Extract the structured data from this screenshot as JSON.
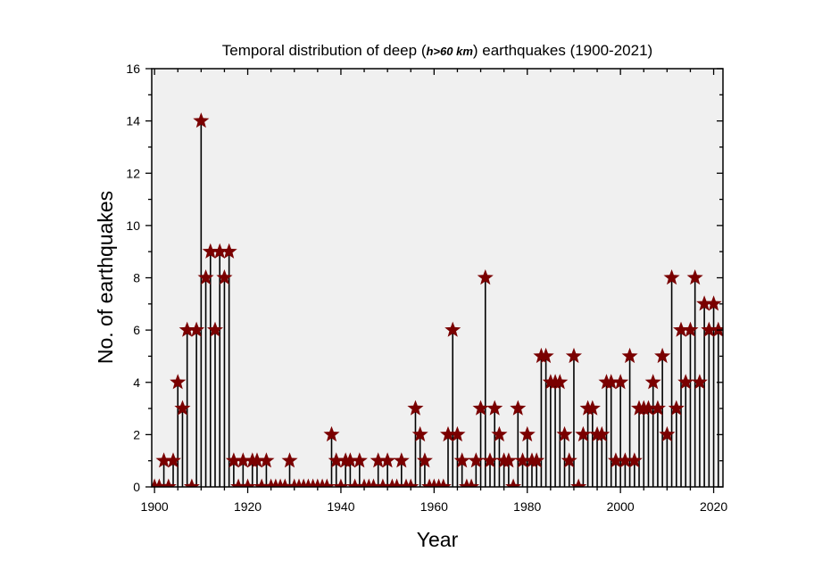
{
  "chart_data": {
    "type": "stem",
    "title_parts": [
      "Temporal distribution of deep (",
      "h>60 km",
      ") earthquakes (1900-2021)"
    ],
    "xlabel": "Year",
    "ylabel": "No. of earthquakes",
    "xlim": [
      1899.4,
      2022
    ],
    "ylim": [
      0,
      16
    ],
    "xticks": [
      1900,
      1920,
      1940,
      1960,
      1980,
      2000,
      2020
    ],
    "yticks": [
      0,
      2,
      4,
      6,
      8,
      10,
      12,
      14,
      16
    ],
    "grid": false,
    "marker": "star",
    "colors": {
      "marker": "#7a0000",
      "stem": "#000000",
      "plot_background": "#f0f0f0"
    },
    "x": [
      1900,
      1901,
      1902,
      1903,
      1904,
      1905,
      1906,
      1907,
      1908,
      1909,
      1910,
      1911,
      1912,
      1913,
      1914,
      1915,
      1916,
      1917,
      1918,
      1919,
      1920,
      1921,
      1922,
      1923,
      1924,
      1925,
      1926,
      1927,
      1928,
      1929,
      1930,
      1931,
      1932,
      1933,
      1934,
      1935,
      1936,
      1937,
      1938,
      1939,
      1940,
      1941,
      1942,
      1943,
      1944,
      1945,
      1946,
      1947,
      1948,
      1949,
      1950,
      1951,
      1952,
      1953,
      1954,
      1955,
      1956,
      1957,
      1958,
      1959,
      1960,
      1961,
      1962,
      1963,
      1964,
      1965,
      1966,
      1967,
      1968,
      1969,
      1970,
      1971,
      1972,
      1973,
      1974,
      1975,
      1976,
      1977,
      1978,
      1979,
      1980,
      1981,
      1982,
      1983,
      1984,
      1985,
      1986,
      1987,
      1988,
      1989,
      1990,
      1991,
      1992,
      1993,
      1994,
      1995,
      1996,
      1997,
      1998,
      1999,
      2000,
      2001,
      2002,
      2003,
      2004,
      2005,
      2006,
      2007,
      2008,
      2009,
      2010,
      2011,
      2012,
      2013,
      2014,
      2015,
      2016,
      2017,
      2018,
      2019,
      2020,
      2021
    ],
    "y": [
      0,
      0,
      1,
      0,
      1,
      4,
      3,
      6,
      0,
      6,
      14,
      8,
      9,
      6,
      9,
      8,
      9,
      1,
      0,
      1,
      0,
      1,
      1,
      0,
      1,
      0,
      0,
      0,
      0,
      1,
      0,
      0,
      0,
      0,
      0,
      0,
      0,
      0,
      2,
      1,
      0,
      1,
      1,
      0,
      1,
      0,
      0,
      0,
      1,
      0,
      1,
      0,
      0,
      1,
      0,
      0,
      3,
      2,
      1,
      0,
      0,
      0,
      0,
      2,
      6,
      2,
      1,
      0,
      0,
      1,
      3,
      8,
      1,
      3,
      2,
      1,
      1,
      0,
      3,
      1,
      2,
      1,
      1,
      5,
      5,
      4,
      4,
      4,
      2,
      1,
      5,
      0,
      2,
      3,
      3,
      2,
      2,
      4,
      4,
      1,
      4,
      1,
      5,
      1,
      3,
      3,
      3,
      4,
      3,
      5,
      2,
      8,
      3,
      6,
      4,
      6,
      8,
      4,
      7,
      6,
      7,
      6
    ]
  }
}
